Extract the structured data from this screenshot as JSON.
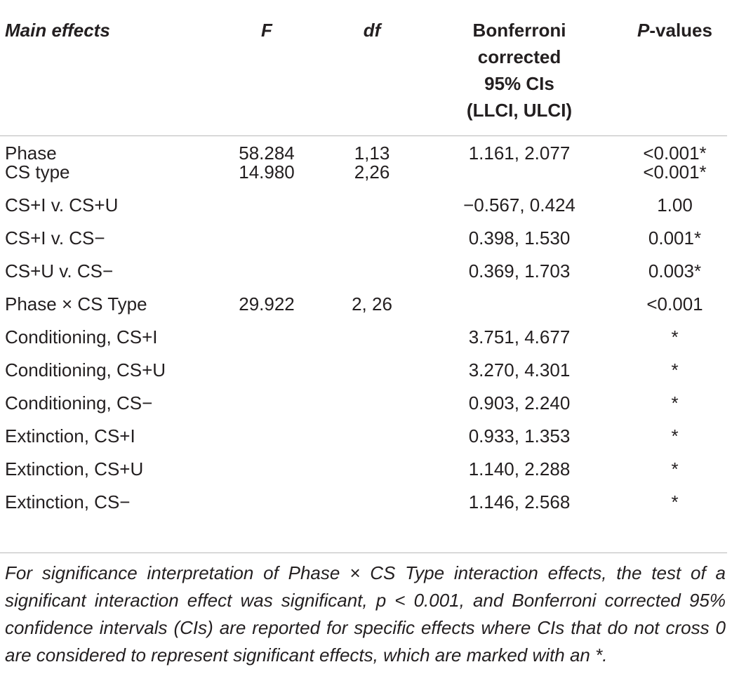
{
  "table": {
    "headers": {
      "main_effects": "Main effects",
      "f": "F",
      "df": "df",
      "ci_line1": "Bonferroni",
      "ci_line2": "corrected",
      "ci_line3": "95% CIs",
      "ci_line4": "(LLCI, ULCI)",
      "p_prefix": "P",
      "p_suffix": "-values"
    },
    "rows": [
      {
        "effect": "Phase",
        "f": "58.284",
        "df": "1,13",
        "ci": "1.161, 2.077",
        "p": "<0.001*"
      },
      {
        "effect": "CS type",
        "f": "14.980",
        "df": "2,26",
        "ci": "",
        "p": "<0.001*"
      },
      {
        "effect": "CS+I v. CS+U",
        "f": "",
        "df": "",
        "ci": "−0.567, 0.424",
        "p": "1.00"
      },
      {
        "effect": "CS+I v. CS−",
        "f": "",
        "df": "",
        "ci": "0.398, 1.530",
        "p": "0.001*"
      },
      {
        "effect": "CS+U v. CS−",
        "f": "",
        "df": "",
        "ci": "0.369, 1.703",
        "p": "0.003*"
      },
      {
        "effect": "Phase × CS Type",
        "f": "29.922",
        "df": "2, 26",
        "ci": "",
        "p": "<0.001"
      },
      {
        "effect": "Conditioning, CS+I",
        "f": "",
        "df": "",
        "ci": "3.751, 4.677",
        "p": "*"
      },
      {
        "effect": "Conditioning, CS+U",
        "f": "",
        "df": "",
        "ci": "3.270, 4.301",
        "p": "*"
      },
      {
        "effect": "Conditioning, CS−",
        "f": "",
        "df": "",
        "ci": "0.903, 2.240",
        "p": "*"
      },
      {
        "effect": "Extinction, CS+I",
        "f": "",
        "df": "",
        "ci": "0.933, 1.353",
        "p": "*"
      },
      {
        "effect": "Extinction, CS+U",
        "f": "",
        "df": "",
        "ci": "1.140, 2.288",
        "p": "*"
      },
      {
        "effect": "Extinction, CS−",
        "f": "",
        "df": "",
        "ci": "1.146, 2.568",
        "p": "*"
      }
    ]
  },
  "footnote": "For significance interpretation of Phase × CS Type interaction effects, the test of a significant interaction effect was significant, p < 0.001, and Bonferroni corrected 95% confidence intervals (CIs) are reported for specific effects where CIs that do not cross 0 are considered to represent significant effects, which are marked with an *.",
  "colors": {
    "text": "#231f20",
    "rule": "#b8b8b8"
  }
}
